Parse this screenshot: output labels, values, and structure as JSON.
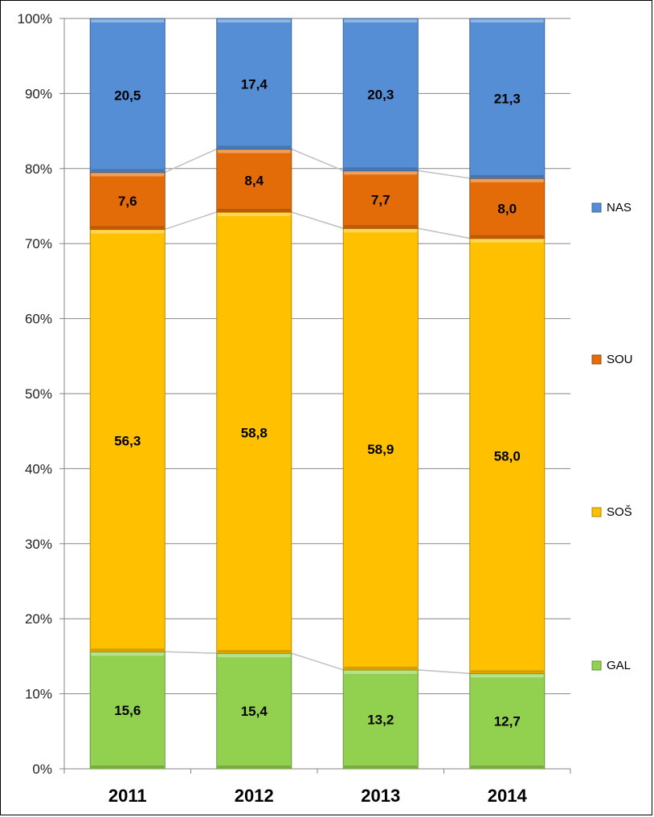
{
  "chart_data": {
    "type": "bar",
    "stacked": "percent",
    "categories": [
      "2011",
      "2012",
      "2013",
      "2014"
    ],
    "series": [
      {
        "name": "GAL",
        "values": [
          15.6,
          15.4,
          13.2,
          12.7
        ],
        "color": "#92d050"
      },
      {
        "name": "SOŠ",
        "values": [
          56.3,
          58.8,
          58.9,
          58.0
        ],
        "color": "#ffc000"
      },
      {
        "name": "SOU",
        "values": [
          7.6,
          8.4,
          7.7,
          8.0
        ],
        "color": "#e36c09"
      },
      {
        "name": "NAS",
        "values": [
          20.5,
          17.4,
          20.3,
          21.3
        ],
        "color": "#558ed5"
      }
    ],
    "value_labels": [
      [
        "15,6",
        "15,4",
        "13,2",
        "12,7"
      ],
      [
        "56,3",
        "58,8",
        "58,9",
        "58,0"
      ],
      [
        "7,6",
        "8,4",
        "7,7",
        "8,0"
      ],
      [
        "20,5",
        "17,4",
        "20,3",
        "21,3"
      ]
    ],
    "yticks": [
      "0%",
      "10%",
      "20%",
      "30%",
      "40%",
      "50%",
      "60%",
      "70%",
      "80%",
      "90%",
      "100%"
    ],
    "ylim": [
      0,
      100
    ],
    "grid": true,
    "series_lines": true,
    "legend_position": "right",
    "legend_order": [
      "NAS",
      "SOU",
      "SOŠ",
      "GAL"
    ],
    "title": "",
    "xlabel": "",
    "ylabel": ""
  }
}
